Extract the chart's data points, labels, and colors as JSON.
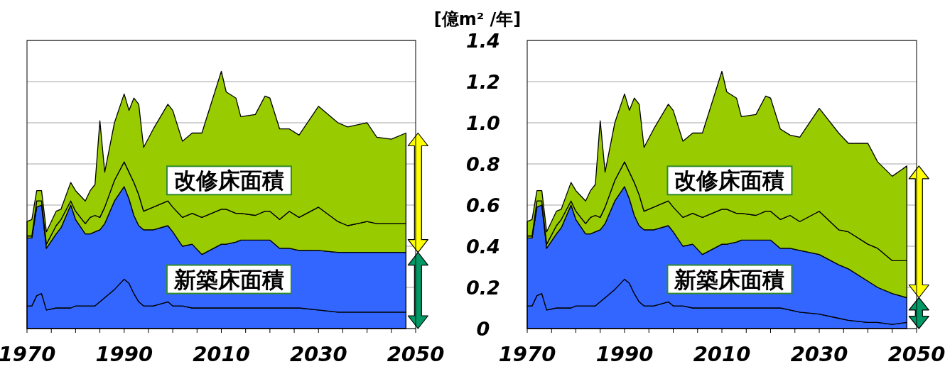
{
  "chart_data": [
    {
      "type": "area",
      "stacked": true,
      "tick_labels": "x",
      "grid": "y",
      "xlim": [
        1970,
        2050
      ],
      "ylim": [
        0,
        1.4
      ],
      "xticks": [
        1970,
        {
          "value": 1975,
          "label": null
        },
        {
          "value": 1980,
          "label": null
        },
        {
          "value": 1985,
          "label": null
        },
        1990,
        {
          "value": 1995,
          "label": null
        },
        {
          "value": 2000,
          "label": null
        },
        {
          "value": 2005,
          "label": null
        },
        2010,
        {
          "value": 2015,
          "label": null
        },
        {
          "value": 2020,
          "label": null
        },
        {
          "value": 2025,
          "label": null
        },
        2030,
        {
          "value": 2035,
          "label": null
        },
        {
          "value": 2040,
          "label": null
        },
        {
          "value": 2045,
          "label": null
        },
        2050
      ],
      "yticks": [
        0,
        0.2,
        0.4,
        0.6,
        0.8,
        1,
        1.2,
        1.4
      ],
      "x": [
        1970,
        1971,
        1972,
        1973,
        1974,
        1976,
        1977,
        1979,
        1980,
        1982,
        1983,
        1984,
        1985,
        1986,
        1988,
        1990,
        1991,
        1992,
        1993,
        1994,
        1996,
        1999,
        2000,
        2002,
        2004,
        2006,
        2010,
        2011,
        2013,
        2014,
        2017,
        2019,
        2020,
        2022,
        2024,
        2026,
        2030,
        2034,
        2036,
        2040,
        2042,
        2045,
        2048
      ],
      "series": [
        {
          "color": "#3366ff",
          "values": [
            0.11,
            0.11,
            0.16,
            0.17,
            0.09,
            0.1,
            0.1,
            0.1,
            0.11,
            0.11,
            0.11,
            0.11,
            0.13,
            0.15,
            0.19,
            0.24,
            0.22,
            0.17,
            0.13,
            0.11,
            0.11,
            0.13,
            0.11,
            0.11,
            0.1,
            0.1,
            0.1,
            0.1,
            0.1,
            0.1,
            0.1,
            0.1,
            0.1,
            0.1,
            0.1,
            0.1,
            0.09,
            0.08,
            0.08,
            0.08,
            0.08,
            0.08,
            0.08
          ]
        },
        {
          "color": "#3366ff",
          "values": [
            0.33,
            0.33,
            0.43,
            0.43,
            0.3,
            0.36,
            0.39,
            0.5,
            0.42,
            0.35,
            0.35,
            0.36,
            0.35,
            0.36,
            0.43,
            0.45,
            0.41,
            0.38,
            0.37,
            0.37,
            0.37,
            0.37,
            0.36,
            0.29,
            0.31,
            0.26,
            0.31,
            0.31,
            0.32,
            0.33,
            0.33,
            0.33,
            0.33,
            0.29,
            0.29,
            0.28,
            0.29,
            0.29,
            0.29,
            0.29,
            0.29,
            0.29,
            0.29
          ]
        },
        {
          "color": "#99cc00",
          "values": [
            0.01,
            0.01,
            0.03,
            0.02,
            0.02,
            0.04,
            0.04,
            0.02,
            0.04,
            0.05,
            0.08,
            0.08,
            0.06,
            0.08,
            0.1,
            0.12,
            0.13,
            0.16,
            0.15,
            0.09,
            0.11,
            0.12,
            0.12,
            0.14,
            0.15,
            0.18,
            0.17,
            0.17,
            0.14,
            0.13,
            0.12,
            0.14,
            0.14,
            0.14,
            0.18,
            0.16,
            0.21,
            0.15,
            0.13,
            0.15,
            0.14,
            0.14,
            0.14
          ]
        },
        {
          "color": "#99cc00",
          "values": [
            0.07,
            0.08,
            0.05,
            0.05,
            0.06,
            0.07,
            0.05,
            0.09,
            0.1,
            0.11,
            0.13,
            0.15,
            0.47,
            0.17,
            0.28,
            0.33,
            0.3,
            0.41,
            0.44,
            0.31,
            0.38,
            0.47,
            0.47,
            0.37,
            0.39,
            0.41,
            0.67,
            0.57,
            0.56,
            0.47,
            0.49,
            0.56,
            0.55,
            0.44,
            0.4,
            0.4,
            0.49,
            0.48,
            0.48,
            0.48,
            0.42,
            0.41,
            0.44
          ]
        }
      ],
      "annotations": [
        "改修床面積",
        "新築床面積"
      ]
    },
    {
      "type": "area",
      "stacked": true,
      "grid": "y",
      "ylabel": "[億m² /年]",
      "xlim": [
        1970,
        2050
      ],
      "ylim": [
        0,
        1.4
      ],
      "xticks": [
        1970,
        {
          "value": 1975,
          "label": null
        },
        {
          "value": 1980,
          "label": null
        },
        {
          "value": 1985,
          "label": null
        },
        1990,
        {
          "value": 1995,
          "label": null
        },
        {
          "value": 2000,
          "label": null
        },
        {
          "value": 2005,
          "label": null
        },
        2010,
        {
          "value": 2015,
          "label": null
        },
        {
          "value": 2020,
          "label": null
        },
        {
          "value": 2025,
          "label": null
        },
        2030,
        {
          "value": 2035,
          "label": null
        },
        {
          "value": 2040,
          "label": null
        },
        {
          "value": 2045,
          "label": null
        },
        2050
      ],
      "yticks": [
        0,
        0.2,
        0.4,
        0.6,
        0.8,
        {
          "value": 1,
          "label": "1.0"
        },
        1.2,
        1.4
      ],
      "x": [
        1970,
        1971,
        1972,
        1973,
        1974,
        1976,
        1977,
        1979,
        1980,
        1982,
        1983,
        1984,
        1985,
        1986,
        1988,
        1990,
        1991,
        1992,
        1993,
        1994,
        1996,
        1999,
        2000,
        2002,
        2004,
        2006,
        2010,
        2011,
        2013,
        2014,
        2017,
        2019,
        2020,
        2022,
        2024,
        2026,
        2030,
        2034,
        2036,
        2040,
        2042,
        2045,
        2048
      ],
      "series": [
        {
          "color": "#3366ff",
          "values": [
            0.11,
            0.11,
            0.16,
            0.17,
            0.09,
            0.1,
            0.1,
            0.1,
            0.11,
            0.11,
            0.11,
            0.11,
            0.13,
            0.15,
            0.19,
            0.24,
            0.22,
            0.17,
            0.13,
            0.11,
            0.11,
            0.13,
            0.11,
            0.11,
            0.1,
            0.1,
            0.1,
            0.1,
            0.1,
            0.1,
            0.1,
            0.1,
            0.1,
            0.1,
            0.09,
            0.08,
            0.07,
            0.05,
            0.04,
            0.03,
            0.03,
            0.02,
            0.03
          ]
        },
        {
          "color": "#3366ff",
          "values": [
            0.33,
            0.33,
            0.43,
            0.43,
            0.3,
            0.36,
            0.39,
            0.5,
            0.42,
            0.35,
            0.35,
            0.36,
            0.35,
            0.36,
            0.43,
            0.45,
            0.41,
            0.38,
            0.37,
            0.37,
            0.37,
            0.37,
            0.36,
            0.29,
            0.31,
            0.26,
            0.31,
            0.31,
            0.32,
            0.33,
            0.33,
            0.33,
            0.33,
            0.29,
            0.3,
            0.3,
            0.29,
            0.26,
            0.25,
            0.2,
            0.17,
            0.15,
            0.12
          ]
        },
        {
          "color": "#99cc00",
          "values": [
            0.01,
            0.01,
            0.03,
            0.02,
            0.02,
            0.04,
            0.04,
            0.02,
            0.04,
            0.05,
            0.08,
            0.08,
            0.06,
            0.08,
            0.1,
            0.12,
            0.13,
            0.16,
            0.15,
            0.09,
            0.11,
            0.12,
            0.12,
            0.14,
            0.15,
            0.18,
            0.17,
            0.17,
            0.14,
            0.13,
            0.12,
            0.14,
            0.14,
            0.14,
            0.16,
            0.14,
            0.21,
            0.17,
            0.18,
            0.18,
            0.19,
            0.16,
            0.18
          ]
        },
        {
          "color": "#99cc00",
          "values": [
            0.07,
            0.08,
            0.05,
            0.05,
            0.06,
            0.07,
            0.05,
            0.09,
            0.1,
            0.11,
            0.13,
            0.15,
            0.47,
            0.17,
            0.28,
            0.33,
            0.3,
            0.41,
            0.44,
            0.31,
            0.38,
            0.47,
            0.47,
            0.37,
            0.39,
            0.41,
            0.67,
            0.57,
            0.56,
            0.47,
            0.49,
            0.56,
            0.55,
            0.44,
            0.39,
            0.41,
            0.5,
            0.47,
            0.43,
            0.49,
            0.42,
            0.41,
            0.46
          ]
        }
      ],
      "annotations": [
        "改修床面積",
        "新築床面積"
      ]
    }
  ]
}
